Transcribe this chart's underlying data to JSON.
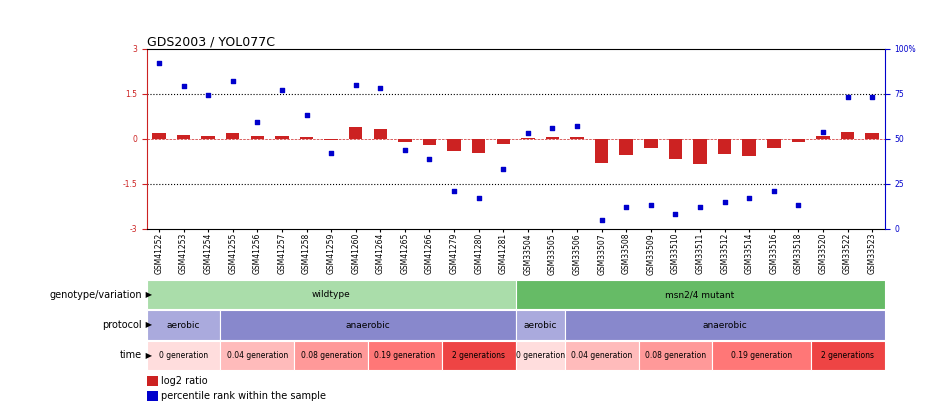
{
  "title": "GDS2003 / YOL077C",
  "samples": [
    "GSM41252",
    "GSM41253",
    "GSM41254",
    "GSM41255",
    "GSM41256",
    "GSM41257",
    "GSM41258",
    "GSM41259",
    "GSM41260",
    "GSM41264",
    "GSM41265",
    "GSM41266",
    "GSM41279",
    "GSM41280",
    "GSM41281",
    "GSM33504",
    "GSM33505",
    "GSM33506",
    "GSM33507",
    "GSM33508",
    "GSM33509",
    "GSM33510",
    "GSM33511",
    "GSM33512",
    "GSM33514",
    "GSM33516",
    "GSM33518",
    "GSM33520",
    "GSM33522",
    "GSM33523"
  ],
  "log2_ratio": [
    0.18,
    0.14,
    0.1,
    0.2,
    0.08,
    0.1,
    0.07,
    -0.04,
    0.38,
    0.32,
    -0.12,
    -0.22,
    -0.42,
    -0.48,
    -0.16,
    0.04,
    0.07,
    0.05,
    -0.8,
    -0.55,
    -0.32,
    -0.68,
    -0.85,
    -0.52,
    -0.58,
    -0.32,
    -0.12,
    0.08,
    0.24,
    0.2
  ],
  "percentile": [
    92,
    79,
    74,
    82,
    59,
    77,
    63,
    42,
    80,
    78,
    44,
    39,
    21,
    17,
    33,
    53,
    56,
    57,
    5,
    12,
    13,
    8,
    12,
    15,
    17,
    21,
    13,
    54,
    73,
    73
  ],
  "ylim_left": [
    -3,
    3
  ],
  "ylim_right": [
    0,
    100
  ],
  "bar_color": "#cc2222",
  "scatter_color": "#0000cc",
  "zero_line_color": "#cc2222",
  "background_color": "#ffffff",
  "label_fontsize": 7,
  "title_fontsize": 9,
  "tick_fontsize": 5.5,
  "row_label_fontsize": 7,
  "annotation_fontsize": 6.5,
  "time_fontsize": 5.5,
  "legend_square_color_log2": "#cc2222",
  "legend_square_color_pct": "#0000cc",
  "geno_segments": [
    {
      "start": 0,
      "end": 15,
      "color": "#aaddaa",
      "text": "wildtype"
    },
    {
      "start": 15,
      "end": 30,
      "color": "#66bb66",
      "text": "msn2/4 mutant"
    }
  ],
  "prot_segments": [
    {
      "start": 0,
      "end": 3,
      "color": "#aaaadd",
      "text": "aerobic"
    },
    {
      "start": 3,
      "end": 15,
      "color": "#8888cc",
      "text": "anaerobic"
    },
    {
      "start": 15,
      "end": 17,
      "color": "#aaaadd",
      "text": "aerobic"
    },
    {
      "start": 17,
      "end": 30,
      "color": "#8888cc",
      "text": "anaerobic"
    }
  ],
  "time_segments": [
    {
      "start": 0,
      "end": 3,
      "color": "#ffdddd",
      "text": "0 generation"
    },
    {
      "start": 3,
      "end": 6,
      "color": "#ffbbbb",
      "text": "0.04 generation"
    },
    {
      "start": 6,
      "end": 9,
      "color": "#ff9999",
      "text": "0.08 generation"
    },
    {
      "start": 9,
      "end": 12,
      "color": "#ff7777",
      "text": "0.19 generation"
    },
    {
      "start": 12,
      "end": 15,
      "color": "#ee4444",
      "text": "2 generations"
    },
    {
      "start": 15,
      "end": 17,
      "color": "#ffdddd",
      "text": "0 generation"
    },
    {
      "start": 17,
      "end": 20,
      "color": "#ffbbbb",
      "text": "0.04 generation"
    },
    {
      "start": 20,
      "end": 23,
      "color": "#ff9999",
      "text": "0.08 generation"
    },
    {
      "start": 23,
      "end": 27,
      "color": "#ff7777",
      "text": "0.19 generation"
    },
    {
      "start": 27,
      "end": 30,
      "color": "#ee4444",
      "text": "2 generations"
    }
  ]
}
